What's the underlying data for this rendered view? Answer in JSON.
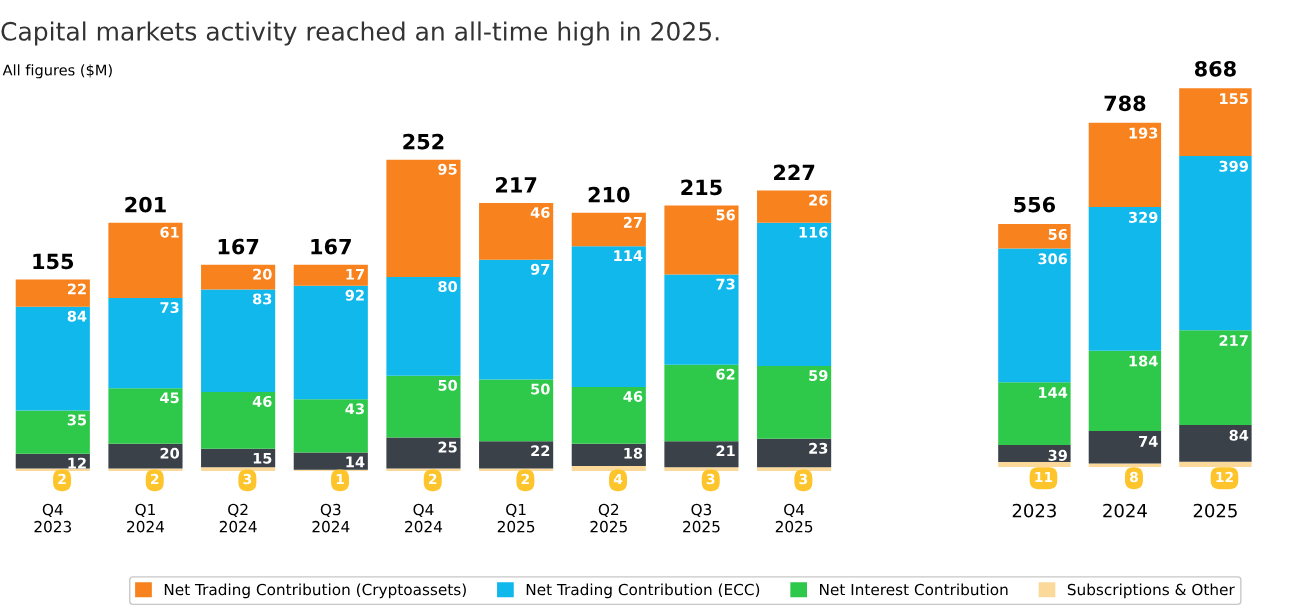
{
  "chart_data": [
    {
      "type": "bar",
      "stacked": true,
      "data_labels": true,
      "legend": "bottom",
      "title": "Capital markets activity reached an all-time high in 2025.",
      "subtitle": "All figures ($M)",
      "categories": [
        "Q4\n2023",
        "Q1\n2024",
        "Q2\n2024",
        "Q3\n2024",
        "Q4\n2024",
        "Q1\n2025",
        "Q2\n2025",
        "Q3\n2025",
        "Q4\n2025"
      ],
      "series": [
        {
          "name": "Subscriptions & Other",
          "color": "#fbd99a",
          "values": [
            2,
            2,
            3,
            1,
            2,
            2,
            4,
            3,
            3
          ]
        },
        {
          "color": "#3a4148",
          "values": [
            12,
            20,
            15,
            14,
            25,
            22,
            18,
            21,
            23
          ]
        },
        {
          "name": "Net Interest Contribution",
          "color": "#2ec84a",
          "values": [
            35,
            45,
            46,
            43,
            50,
            50,
            46,
            62,
            59
          ]
        },
        {
          "name": "Net Trading Contribution (ECC)",
          "color": "#10b8ec",
          "values": [
            84,
            73,
            83,
            92,
            80,
            97,
            114,
            73,
            116
          ]
        },
        {
          "name": "Net Trading Contribution (Cryptoassets)",
          "color": "#f7821e",
          "values": [
            22,
            61,
            20,
            17,
            95,
            46,
            27,
            56,
            26
          ]
        }
      ],
      "totals": [
        "155",
        "201",
        "167",
        "167",
        "252",
        "217",
        "210",
        "215",
        "227"
      ]
    },
    {
      "type": "bar",
      "stacked": true,
      "data_labels": true,
      "categories": [
        "2023",
        "2024",
        "2025"
      ],
      "series": [
        {
          "name": "Subscriptions & Other",
          "color": "#fbd99a",
          "values": [
            11,
            8,
            12
          ]
        },
        {
          "color": "#3a4148",
          "values": [
            39,
            74,
            84
          ]
        },
        {
          "name": "Net Interest Contribution",
          "color": "#2ec84a",
          "values": [
            144,
            184,
            217
          ]
        },
        {
          "name": "Net Trading Contribution (ECC)",
          "color": "#10b8ec",
          "values": [
            306,
            329,
            399
          ]
        },
        {
          "name": "Net Trading Contribution (Cryptoassets)",
          "color": "#f7821e",
          "values": [
            56,
            193,
            155
          ]
        }
      ],
      "totals": [
        "556",
        "788",
        "868"
      ]
    }
  ]
}
